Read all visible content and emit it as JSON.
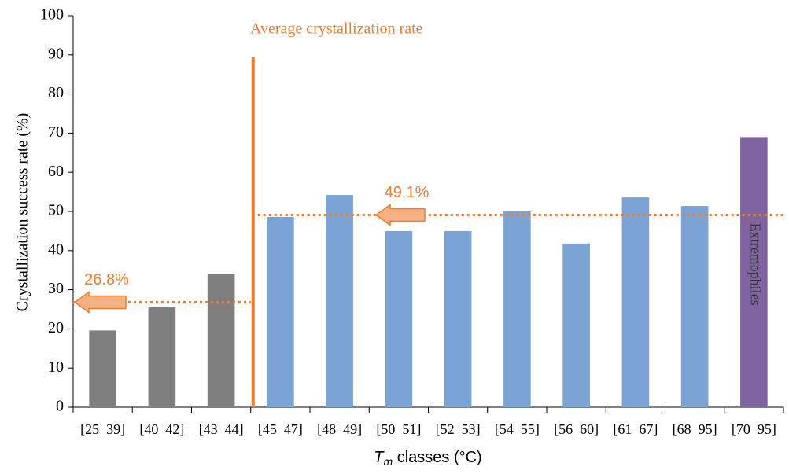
{
  "chart_data": {
    "type": "bar",
    "title": "Average crystallization rate",
    "y_label": "Crystallization success rate (%)",
    "x_label": [
      "T",
      "m",
      " classes (°C)"
    ],
    "categories": [
      "[25  39]",
      "[40  42]",
      "[43  44]",
      "[45  47]",
      "[48  49]",
      "[50  51]",
      "[52  53]",
      "[54  55]",
      "[56  60]",
      "[61  67]",
      "[68  95]",
      "[70  95]"
    ],
    "values": [
      19.6,
      25.6,
      34,
      48.6,
      54.2,
      45,
      45,
      50,
      41.8,
      53.6,
      51.4,
      69
    ],
    "colors": [
      "#7f7f7f",
      "#7f7f7f",
      "#7f7f7f",
      "#7ba3d4",
      "#7ba3d4",
      "#7ba3d4",
      "#7ba3d4",
      "#7ba3d4",
      "#7ba3d4",
      "#7ba3d4",
      "#7ba3d4",
      "#8064a2"
    ],
    "bar_annotation": "Extremophiles",
    "averages": [
      {
        "value": 26.8,
        "label": "26.8%"
      },
      {
        "value": 49.1,
        "label": "49.1%"
      }
    ],
    "average_color": "#ed7d31",
    "ylim": [
      0,
      100
    ],
    "yticks": [
      0,
      10,
      20,
      30,
      40,
      50,
      60,
      70,
      80,
      90,
      100
    ]
  }
}
